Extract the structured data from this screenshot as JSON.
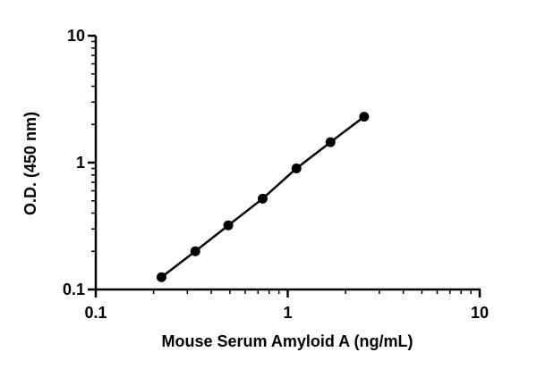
{
  "chart_data": {
    "type": "line",
    "title": "",
    "xlabel": "Mouse Serum Amyloid A (ng/mL)",
    "ylabel": "O.D. (450 nm)",
    "xscale": "log",
    "yscale": "log",
    "xlim": [
      0.1,
      10
    ],
    "ylim": [
      0.1,
      10
    ],
    "x_ticks": [
      "0.1",
      "1",
      "10"
    ],
    "y_ticks": [
      "0.1",
      "1",
      "10"
    ],
    "grid": false,
    "legend": "none",
    "series": [
      {
        "x": [
          0.22,
          0.33,
          0.49,
          0.74,
          1.11,
          1.67,
          2.5
        ],
        "y": [
          0.125,
          0.2,
          0.32,
          0.52,
          0.9,
          1.45,
          2.3
        ],
        "marker": "circle",
        "color": "#000000"
      }
    ]
  }
}
